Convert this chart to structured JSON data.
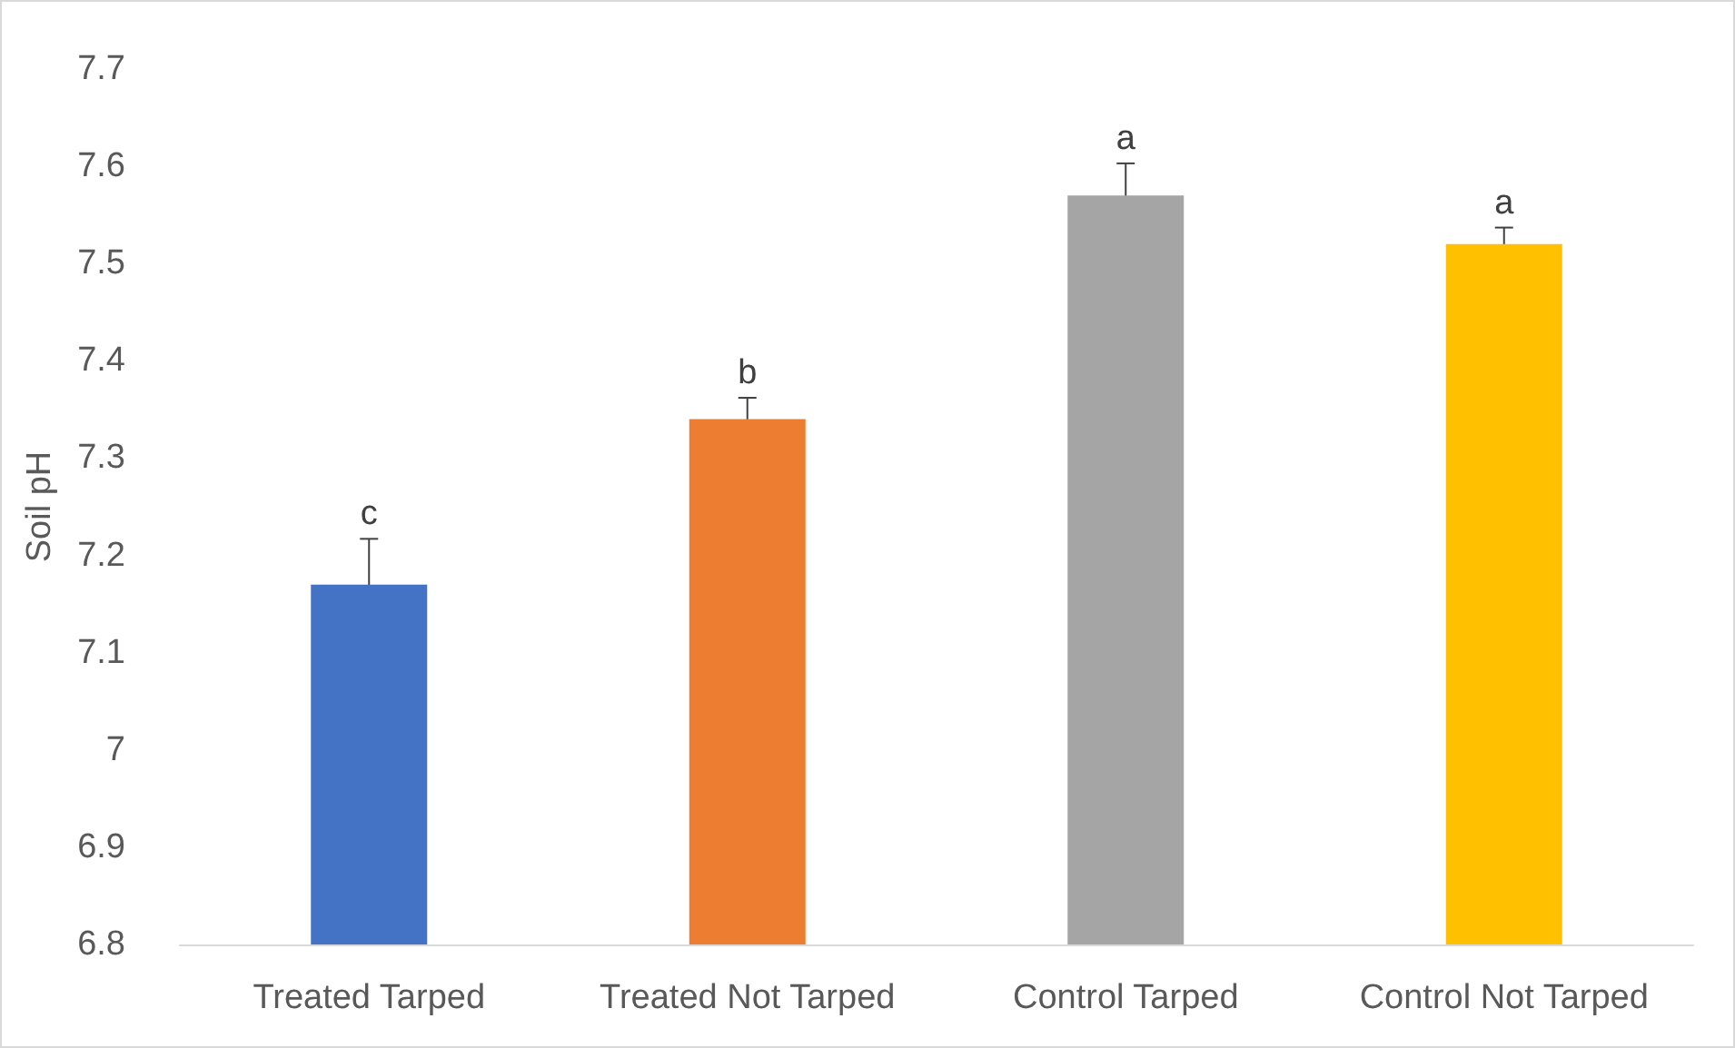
{
  "chart_data": {
    "type": "bar",
    "ylabel": "Soil pH",
    "categories": [
      "Treated Tarped",
      "Treated Not Tarped",
      "Control Tarped",
      "Control Not Tarped"
    ],
    "values": [
      7.17,
      7.34,
      7.57,
      7.52
    ],
    "colors": [
      "#4472c4",
      "#ed7d31",
      "#a5a5a5",
      "#ffc000"
    ],
    "errors": [
      0.047,
      0.022,
      0.033,
      0.017
    ],
    "ylim": [
      6.8,
      7.7
    ],
    "yticks": [
      6.8,
      6.9,
      7,
      7.1,
      7.2,
      7.3,
      7.4,
      7.5,
      7.6,
      7.7
    ],
    "grid": false,
    "annotations": [
      "c",
      "b",
      "a",
      "a"
    ]
  }
}
